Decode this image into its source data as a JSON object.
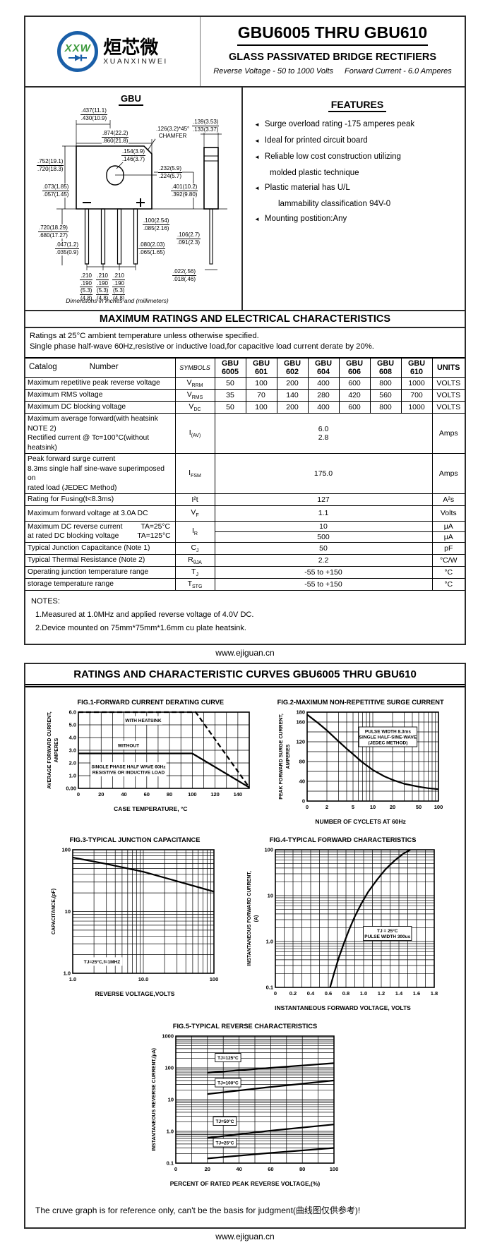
{
  "header": {
    "logo": {
      "circle_text": "XXW",
      "cn_name": "烜芯微",
      "en_name": "XUANXINWEI"
    },
    "part_range": "GBU6005 THRU GBU610",
    "subtitle": "GLASS PASSIVATED  BRIDGE RECTIFIERS",
    "reverse_voltage": "Reverse Voltage - 50 to 1000 Volts",
    "forward_current": "Forward Current -  6.0 Amperes"
  },
  "drawing": {
    "title": "GBU",
    "minus": "−",
    "plus": "+",
    "note": "Dimensions in inches and (millimeters)",
    "dims": {
      "d437": {
        "t": ".437(11.1)",
        "b": ".430(10.9)"
      },
      "d874": {
        "t": ".874(22.2)",
        "b": ".860(21.8)"
      },
      "chamfer": {
        "t": ".126(3.2)*45°",
        "b": "CHAMFER"
      },
      "d139": {
        "t": ".139(3.53)",
        "b": ".133(3.37)"
      },
      "d154": {
        "t": ".154(3.9)",
        "b": ".146(3.7)"
      },
      "d752": {
        "t": ".752(19.1)",
        "b": ".720(18.3)"
      },
      "d232": {
        "t": ".232(5.9)",
        "b": ".224(5.7)"
      },
      "d073": {
        "t": ".073(1.85)",
        "b": ".057(1.45)"
      },
      "d401": {
        "t": ".401(10.2)",
        "b": ".392(9.80)"
      },
      "d720b": {
        "t": ".720(18.29)",
        "b": ".680(17.27)"
      },
      "d100": {
        "t": ".100(2.54)",
        "b": ".085(2.16)"
      },
      "d106": {
        "t": ".106(2.7)",
        "b": ".091(2.3)"
      },
      "d047": {
        "t": ".047(1.2)",
        "b": ".035(0.9)"
      },
      "d080": {
        "t": ".080(2.03)",
        "b": ".065(1.65)"
      },
      "spacing": {
        "t": ".210",
        "b": ".190",
        "t2": "(5.3)",
        "b2": "(4.8)"
      },
      "d022": {
        "t": ".022(.56)",
        "b": ".018(.46)"
      }
    }
  },
  "features": {
    "title": "FEATURES",
    "items": [
      {
        "text": "Surge overload rating -175 amperes peak",
        "cont": ""
      },
      {
        "text": "Ideal for printed circuit board",
        "cont": ""
      },
      {
        "text": "Reliable low cost construction utilizing",
        "cont": "molded plastic technique"
      },
      {
        "text": "Plastic material has U/L",
        "cont": "lammability classification 94V-0"
      },
      {
        "text": "Mounting postition:Any",
        "cont": ""
      }
    ]
  },
  "ratings": {
    "title": "MAXIMUM RATINGS AND ELECTRICAL CHARACTERISTICS",
    "cond1": "Ratings at 25°C ambient temperature unless otherwise specified.",
    "cond2": "Single phase half-wave 60Hz,resistive or inductive load,for capacitive load current derate by 20%."
  },
  "table": {
    "header": {
      "catalog": "Catalog",
      "number": "Number",
      "symbols": "SYMBOLS",
      "brand": "GBU",
      "parts": [
        "6005",
        "601",
        "602",
        "604",
        "606",
        "608",
        "610"
      ],
      "units": "UNITS"
    },
    "vrrm": {
      "label": "Maximum repetitive peak reverse voltage",
      "sym": "V",
      "sub": "RRM",
      "values": [
        "50",
        "100",
        "200",
        "400",
        "600",
        "800",
        "1000"
      ],
      "unit": "VOLTS"
    },
    "vrms": {
      "label": "Maximum RMS voltage",
      "sym": "V",
      "sub": "RMS",
      "values": [
        "35",
        "70",
        "140",
        "280",
        "420",
        "560",
        "700"
      ],
      "unit": "VOLTS"
    },
    "vdc": {
      "label": "Maximum DC blocking voltage",
      "sym": "V",
      "sub": "DC",
      "values": [
        "50",
        "100",
        "200",
        "400",
        "600",
        "800",
        "1000"
      ],
      "unit": "VOLTS"
    },
    "iav": {
      "label1": "Maximum average forward(with heatsink NOTE 2)",
      "label2": "Rectified current   @ Tc=100°C(without heatsink)",
      "sym": "I",
      "sub": "(AV)",
      "value1": "6.0",
      "value2": "2.8",
      "unit": "Amps"
    },
    "ifsm": {
      "label1": "Peak forward surge current",
      "label2": "8.3ms single half sine-wave superimposed on",
      "label3": "rated load (JEDEC Method)",
      "sym": "I",
      "sub": "FSM",
      "value": "175.0",
      "unit": "Amps"
    },
    "i2t": {
      "label": "Rating for Fusing(t<8.3ms)",
      "sym": "I²t",
      "sub": "",
      "value": "127",
      "unit": "A²s"
    },
    "vf": {
      "label": "Maximum  forward voltage at 3.0A DC",
      "sym": "V",
      "sub": "F",
      "value": "1.1",
      "unit": "Volts"
    },
    "ir": {
      "label1": "Maximum DC reverse current",
      "cond1": "TA=25°C",
      "label2": "at rated DC blocking voltage",
      "cond2": "TA=125°C",
      "sym": "I",
      "sub": "R",
      "value1": "10",
      "unit1": "μA",
      "value2": "500",
      "unit2": "μA"
    },
    "cj": {
      "label": "Typical Junction Capacitance (Note 1)",
      "sym": "C",
      "sub": "J",
      "value": "50",
      "unit": "pF"
    },
    "rthja": {
      "label": "Typical Thermal Resistance (Note 2)",
      "sym": "R",
      "sub": "θJA",
      "value": "2.2",
      "unit": "°C/W"
    },
    "tj": {
      "label": "Operating junction temperature range",
      "sym": "T",
      "sub": "J",
      "value": "-55 to +150",
      "unit": "°C"
    },
    "tstg": {
      "label": "storage temperature range",
      "sym": "T",
      "sub": "STG",
      "value": "-55 to +150",
      "unit": "°C"
    }
  },
  "notes": {
    "title": "NOTES:",
    "n1": "1.Measured at 1.0MHz and applied reverse voltage of 4.0V DC.",
    "n2": "2.Device mounted on 75mm*75mm*1.6mm cu plate heatsink."
  },
  "footer": {
    "url1": "www.ejiguan.cn",
    "url2": "www.ejiguan.cn"
  },
  "curves": {
    "title": "RATINGS AND CHARACTERISTIC CURVES GBU6005 THRU GBU610",
    "disclaimer": "The cruve graph is for reference only, can't be the basis for judgment(曲线图仅供参考)!"
  },
  "chart_data": [
    {
      "type": "line",
      "title": "FIG.1-FORWARD CURRENT DERATING CURVE",
      "xlabel": "CASE TEMPERATURE, °C",
      "ylabel_lines": [
        "AVERAGE FORWARD CURRENT,",
        "AMPERES"
      ],
      "x": {
        "scale": "linear",
        "min": 0,
        "max": 150,
        "minor": 10,
        "ticks": [
          [
            "0",
            0
          ],
          [
            "20",
            20
          ],
          [
            "40",
            40
          ],
          [
            "60",
            60
          ],
          [
            "80",
            80
          ],
          [
            "100",
            100
          ],
          [
            "120",
            120
          ],
          [
            "140",
            140
          ]
        ]
      },
      "y": {
        "scale": "linear",
        "min": 0,
        "max": 6,
        "minor": 1,
        "ticks": [
          [
            "0.00",
            0
          ],
          [
            "1.0",
            1
          ],
          [
            "2.0",
            2
          ],
          [
            "3.0",
            3
          ],
          [
            "4.0",
            4
          ],
          [
            "5.0",
            5
          ],
          [
            "6.0",
            6
          ]
        ]
      },
      "series": [
        {
          "name": "WITH HEATSINK",
          "dash": true,
          "points": [
            [
              0,
              6
            ],
            [
              103,
              6
            ],
            [
              150,
              0.07
            ]
          ]
        },
        {
          "name": "WITHOUT",
          "dash": false,
          "points": [
            [
              0,
              2.75
            ],
            [
              100,
              2.75
            ],
            [
              150,
              0.07
            ]
          ]
        }
      ],
      "annotations": [
        {
          "x": 57,
          "y": 5.35,
          "lines": [
            "WITH HEATSINK"
          ],
          "boxed": false
        },
        {
          "x": 44,
          "y": 3.4,
          "lines": [
            "WITHOUT"
          ],
          "boxed": false
        },
        {
          "x": 44,
          "y": 1.5,
          "lines": [
            "SINGLE PHASE HALF WAVE  60Hz",
            "RESISTIVE OR INDUCTIVE LOAD"
          ],
          "boxed": false
        }
      ]
    },
    {
      "type": "line",
      "title": "FIG.2-MAXIMUM NON-REPETITIVE  SURGE CURRENT",
      "xlabel": "NUMBER OF CYCLETS AT 60Hz",
      "ylabel_lines": [
        "PEAK FORWARD SURGE CURRENT,",
        "AMPERES"
      ],
      "x": {
        "scale": "log",
        "min": 1,
        "max": 100,
        "ticks": [
          [
            "0",
            1
          ],
          [
            "2",
            2
          ],
          [
            "5",
            5
          ],
          [
            "10",
            10
          ],
          [
            "20",
            20
          ],
          [
            "50",
            50
          ],
          [
            "100",
            100
          ]
        ]
      },
      "y": {
        "scale": "linear",
        "min": 0,
        "max": 180,
        "minor": 20,
        "ticks": [
          [
            "0",
            0
          ],
          [
            "40",
            40
          ],
          [
            "80",
            80
          ],
          [
            "120",
            120
          ],
          [
            "160",
            160
          ],
          [
            "180",
            180
          ]
        ]
      },
      "series": [
        {
          "name": "surge current",
          "dash": false,
          "points": [
            [
              1,
              175
            ],
            [
              1.5,
              157
            ],
            [
              2,
              143
            ],
            [
              3,
              121
            ],
            [
              4,
              106
            ],
            [
              5,
              95
            ],
            [
              7,
              78
            ],
            [
              10,
              63
            ],
            [
              15,
              50
            ],
            [
              20,
              43
            ],
            [
              30,
              35
            ],
            [
              50,
              29
            ],
            [
              70,
              26
            ],
            [
              100,
              24
            ]
          ]
        }
      ],
      "annotations": [
        {
          "x": 17,
          "y": 130,
          "lines": [
            "PULSE WIDTH 8.3ms",
            "SINGLE HALF-SINE-WAVE",
            "(JEDEC METHOD)"
          ],
          "boxed": true
        }
      ]
    },
    {
      "type": "line",
      "title": "FIG.3-TYPICAL JUNCTION CAPACITANCE",
      "xlabel": "REVERSE VOLTAGE,VOLTS",
      "ylabel_lines": [
        "CAPACITANCE,(pF)"
      ],
      "x": {
        "scale": "log",
        "min": 1,
        "max": 100,
        "ticks": [
          [
            "1.0",
            1
          ],
          [
            "10.0",
            10
          ],
          [
            "100",
            100
          ]
        ]
      },
      "y": {
        "scale": "log",
        "min": 1,
        "max": 100,
        "ticks": [
          [
            "1.0",
            1
          ],
          [
            "10",
            10
          ],
          [
            "100",
            100
          ]
        ]
      },
      "series": [
        {
          "name": "junction capacitance",
          "dash": false,
          "points": [
            [
              1,
              75
            ],
            [
              3,
              59
            ],
            [
              10,
              44
            ],
            [
              30,
              31
            ],
            [
              100,
              21
            ]
          ]
        }
      ],
      "annotations": [
        {
          "x": 2.6,
          "y": 1.55,
          "lines": [
            "TJ=25°C,f=1MHZ"
          ],
          "boxed": false
        }
      ]
    },
    {
      "type": "line",
      "title": "FIG.4-TYPICAL FORWARD CHARACTERISTICS",
      "xlabel": "INSTANTANEOUS FORWARD VOLTAGE, VOLTS",
      "ylabel_lines": [
        "INSTANTANEOUS FORWARD CURRENT,",
        "(A)"
      ],
      "x": {
        "scale": "linear",
        "min": 0,
        "max": 1.8,
        "minor": 0.1,
        "ticks": [
          [
            "0",
            0
          ],
          [
            "0.2",
            0.2
          ],
          [
            "0.4",
            0.4
          ],
          [
            "0.6",
            0.6
          ],
          [
            "0.8",
            0.8
          ],
          [
            "1.0",
            1.0
          ],
          [
            "1.2",
            1.2
          ],
          [
            "1.4",
            1.4
          ],
          [
            "1.6",
            1.6
          ],
          [
            "1.8",
            1.8
          ]
        ]
      },
      "y": {
        "scale": "log",
        "min": 0.1,
        "max": 100,
        "ticks": [
          [
            "0.1",
            0.1
          ],
          [
            "1.0",
            1
          ],
          [
            "10",
            10
          ],
          [
            "100",
            100
          ]
        ]
      },
      "series": [
        {
          "name": "forward characteristic",
          "dash": false,
          "points": [
            [
              0.62,
              0.1
            ],
            [
              0.67,
              0.22
            ],
            [
              0.72,
              0.45
            ],
            [
              0.78,
              0.95
            ],
            [
              0.84,
              1.9
            ],
            [
              0.9,
              3.5
            ],
            [
              0.97,
              6.5
            ],
            [
              1.05,
              12
            ],
            [
              1.15,
              22
            ],
            [
              1.25,
              38
            ],
            [
              1.35,
              58
            ],
            [
              1.45,
              82
            ],
            [
              1.53,
              100
            ]
          ]
        }
      ],
      "annotations": [
        {
          "x": 1.27,
          "y": 1.5,
          "lines": [
            "TJ = 25°C",
            "PULSE WIDTH 300us"
          ],
          "boxed": true
        }
      ]
    },
    {
      "type": "line",
      "title": "FIG.5-TYPICAL REVERSE CHARACTERISTICS",
      "xlabel": "PERCENT OF RATED PEAK REVERSE VOLTAGE,(%)",
      "ylabel_lines": [
        "INSTANTANEOUS REVERSE CURRENT,(μA)"
      ],
      "x": {
        "scale": "linear",
        "min": 0,
        "max": 100,
        "minor": 10,
        "ticks": [
          [
            "0",
            0
          ],
          [
            "20",
            20
          ],
          [
            "40",
            40
          ],
          [
            "60",
            60
          ],
          [
            "80",
            80
          ],
          [
            "100",
            100
          ]
        ]
      },
      "y": {
        "scale": "log",
        "min": 0.1,
        "max": 1000,
        "ticks": [
          [
            "0.1",
            0.1
          ],
          [
            "1.0",
            1
          ],
          [
            "10",
            10
          ],
          [
            "100",
            100
          ],
          [
            "1000",
            1000
          ]
        ]
      },
      "series": [
        {
          "name": "TJ=125°C",
          "dash": false,
          "points": [
            [
              20,
              70
            ],
            [
              60,
              100
            ],
            [
              100,
              140
            ]
          ]
        },
        {
          "name": "TJ=100°C",
          "dash": false,
          "points": [
            [
              20,
              15
            ],
            [
              60,
              25
            ],
            [
              100,
              40
            ]
          ]
        },
        {
          "name": "TJ=50°C",
          "dash": false,
          "points": [
            [
              20,
              0.62
            ],
            [
              60,
              1.05
            ],
            [
              100,
              1.65
            ]
          ]
        },
        {
          "name": "TJ=25°C",
          "dash": false,
          "points": [
            [
              20,
              0.14
            ],
            [
              60,
              0.21
            ],
            [
              100,
              0.3
            ]
          ]
        }
      ],
      "annotations": [
        {
          "x": 33,
          "y": 210,
          "lines": [
            "TJ=125°C"
          ],
          "boxed": true
        },
        {
          "x": 33,
          "y": 34,
          "lines": [
            "TJ=100°C"
          ],
          "boxed": true
        },
        {
          "x": 31,
          "y": 2.1,
          "lines": [
            "TJ=50°C"
          ],
          "boxed": true
        },
        {
          "x": 31,
          "y": 0.44,
          "lines": [
            "TJ=25°C"
          ],
          "boxed": true
        }
      ]
    }
  ]
}
